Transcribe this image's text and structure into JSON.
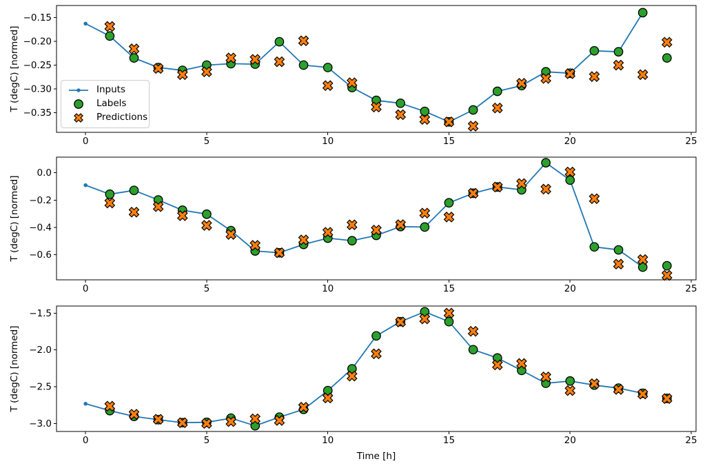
{
  "figure": {
    "background": "#ffffff",
    "xlabel": "Time [h]",
    "legend": {
      "items": [
        {
          "label": "Inputs",
          "marker": "line-dot",
          "color": "#1f77b4"
        },
        {
          "label": "Labels",
          "marker": "circle",
          "color": "#2ca02c"
        },
        {
          "label": "Predictions",
          "marker": "X",
          "color": "#ff7f0e"
        }
      ]
    },
    "colors": {
      "inputs_line": "#1f77b4",
      "labels_fill": "#2ca02c",
      "predictions_fill": "#ff7f0e",
      "marker_edge": "#000000",
      "axis": "#000000",
      "legend_border": "#cccccc"
    }
  },
  "chart_data": [
    {
      "id": "subplot-1",
      "type": "line+scatter",
      "ylabel": "T (degC) [normed]",
      "xlim": [
        -1.2,
        25.2
      ],
      "ylim": [
        -0.391,
        -0.125
      ],
      "xtick_values": [
        0,
        5,
        10,
        15,
        20,
        25
      ],
      "xtick_labels": [
        "0",
        "5",
        "10",
        "15",
        "20",
        "25"
      ],
      "ytick_values": [
        -0.15,
        -0.2,
        -0.25,
        -0.3,
        -0.35
      ],
      "ytick_labels": [
        "−0.15",
        "−0.20",
        "−0.25",
        "−0.30",
        "−0.35"
      ],
      "series": [
        {
          "name": "Inputs",
          "kind": "line",
          "marker": "dot",
          "color": "#1f77b4",
          "x": [
            0,
            1,
            2,
            3,
            4,
            5,
            6,
            7,
            8,
            9,
            10,
            11,
            12,
            13,
            14,
            15,
            16,
            17,
            18,
            19,
            20,
            21,
            22,
            23
          ],
          "y": [
            -0.163,
            -0.189,
            -0.235,
            -0.255,
            -0.261,
            -0.25,
            -0.247,
            -0.248,
            -0.201,
            -0.25,
            -0.255,
            -0.297,
            -0.324,
            -0.33,
            -0.347,
            -0.369,
            -0.344,
            -0.305,
            -0.293,
            -0.264,
            -0.267,
            -0.22,
            -0.222,
            -0.14
          ]
        },
        {
          "name": "Labels",
          "kind": "scatter",
          "marker": "circle",
          "color": "#2ca02c",
          "x": [
            1,
            2,
            3,
            4,
            5,
            6,
            7,
            8,
            9,
            10,
            11,
            12,
            13,
            14,
            15,
            16,
            17,
            18,
            19,
            20,
            21,
            22,
            23,
            24
          ],
          "y": [
            -0.189,
            -0.235,
            -0.255,
            -0.261,
            -0.25,
            -0.247,
            -0.248,
            -0.201,
            -0.25,
            -0.255,
            -0.297,
            -0.324,
            -0.33,
            -0.347,
            -0.369,
            -0.344,
            -0.305,
            -0.293,
            -0.264,
            -0.267,
            -0.22,
            -0.222,
            -0.14,
            -0.235
          ]
        },
        {
          "name": "Predictions",
          "kind": "scatter",
          "marker": "X",
          "color": "#ff7f0e",
          "x": [
            1,
            2,
            3,
            4,
            5,
            6,
            7,
            8,
            9,
            10,
            11,
            12,
            13,
            14,
            15,
            16,
            17,
            18,
            19,
            20,
            21,
            22,
            23,
            24
          ],
          "y": [
            -0.169,
            -0.216,
            -0.257,
            -0.27,
            -0.264,
            -0.235,
            -0.238,
            -0.243,
            -0.199,
            -0.293,
            -0.287,
            -0.338,
            -0.354,
            -0.364,
            -0.369,
            -0.378,
            -0.34,
            -0.288,
            -0.278,
            -0.268,
            -0.274,
            -0.25,
            -0.27,
            -0.202
          ]
        }
      ]
    },
    {
      "id": "subplot-2",
      "type": "line+scatter",
      "ylabel": "T (degC) [normed]",
      "xlim": [
        -1.2,
        25.2
      ],
      "ylim": [
        -0.783,
        0.114
      ],
      "xtick_values": [
        0,
        5,
        10,
        15,
        20,
        25
      ],
      "xtick_labels": [
        "0",
        "5",
        "10",
        "15",
        "20",
        "25"
      ],
      "ytick_values": [
        0.0,
        -0.2,
        -0.4,
        -0.6
      ],
      "ytick_labels": [
        "0.0",
        "−0.2",
        "−0.4",
        "−0.6"
      ],
      "series": [
        {
          "name": "Inputs",
          "kind": "line",
          "marker": "dot",
          "color": "#1f77b4",
          "x": [
            0,
            1,
            2,
            3,
            4,
            5,
            6,
            7,
            8,
            9,
            10,
            11,
            12,
            13,
            14,
            15,
            16,
            17,
            18,
            19,
            20,
            21,
            22,
            23
          ],
          "y": [
            -0.091,
            -0.157,
            -0.129,
            -0.199,
            -0.274,
            -0.303,
            -0.423,
            -0.572,
            -0.585,
            -0.524,
            -0.478,
            -0.497,
            -0.458,
            -0.394,
            -0.397,
            -0.22,
            -0.15,
            -0.104,
            -0.125,
            0.073,
            -0.054,
            -0.542,
            -0.564,
            -0.69
          ]
        },
        {
          "name": "Labels",
          "kind": "scatter",
          "marker": "circle",
          "color": "#2ca02c",
          "x": [
            1,
            2,
            3,
            4,
            5,
            6,
            7,
            8,
            9,
            10,
            11,
            12,
            13,
            14,
            15,
            16,
            17,
            18,
            19,
            20,
            21,
            22,
            23,
            24
          ],
          "y": [
            -0.157,
            -0.129,
            -0.199,
            -0.274,
            -0.303,
            -0.423,
            -0.572,
            -0.585,
            -0.524,
            -0.478,
            -0.497,
            -0.458,
            -0.394,
            -0.397,
            -0.22,
            -0.15,
            -0.104,
            -0.125,
            0.073,
            -0.054,
            -0.542,
            -0.564,
            -0.69,
            -0.68
          ]
        },
        {
          "name": "Predictions",
          "kind": "scatter",
          "marker": "X",
          "color": "#ff7f0e",
          "x": [
            1,
            2,
            3,
            4,
            5,
            6,
            7,
            8,
            9,
            10,
            11,
            12,
            13,
            14,
            15,
            16,
            17,
            18,
            19,
            20,
            21,
            22,
            23,
            24
          ],
          "y": [
            -0.221,
            -0.288,
            -0.248,
            -0.314,
            -0.385,
            -0.451,
            -0.531,
            -0.585,
            -0.491,
            -0.436,
            -0.381,
            -0.419,
            -0.38,
            -0.295,
            -0.324,
            -0.15,
            -0.104,
            -0.079,
            -0.12,
            0.005,
            -0.19,
            -0.668,
            -0.635,
            -0.75
          ]
        }
      ]
    },
    {
      "id": "subplot-3",
      "type": "line+scatter",
      "ylabel": "T (degC) [normed]",
      "xlim": [
        -1.2,
        25.2
      ],
      "ylim": [
        -3.11,
        -1.403
      ],
      "xtick_values": [
        0,
        5,
        10,
        15,
        20,
        25
      ],
      "xtick_labels": [
        "0",
        "5",
        "10",
        "15",
        "20",
        "25"
      ],
      "ytick_values": [
        -1.5,
        -2.0,
        -2.5,
        -3.0
      ],
      "ytick_labels": [
        "−1.5",
        "−2.0",
        "−2.5",
        "−3.0"
      ],
      "series": [
        {
          "name": "Inputs",
          "kind": "line",
          "marker": "dot",
          "color": "#1f77b4",
          "x": [
            0,
            1,
            2,
            3,
            4,
            5,
            6,
            7,
            8,
            9,
            10,
            11,
            12,
            13,
            14,
            15,
            16,
            17,
            18,
            19,
            20,
            21,
            22,
            23
          ],
          "y": [
            -2.733,
            -2.826,
            -2.905,
            -2.95,
            -2.99,
            -2.985,
            -2.929,
            -3.032,
            -2.915,
            -2.81,
            -2.554,
            -2.257,
            -1.809,
            -1.616,
            -1.481,
            -1.616,
            -1.997,
            -2.11,
            -2.279,
            -2.454,
            -2.423,
            -2.48,
            -2.52,
            -2.59
          ]
        },
        {
          "name": "Labels",
          "kind": "scatter",
          "marker": "circle",
          "color": "#2ca02c",
          "x": [
            1,
            2,
            3,
            4,
            5,
            6,
            7,
            8,
            9,
            10,
            11,
            12,
            13,
            14,
            15,
            16,
            17,
            18,
            19,
            20,
            21,
            22,
            23,
            24
          ],
          "y": [
            -2.826,
            -2.905,
            -2.95,
            -2.99,
            -2.985,
            -2.929,
            -3.032,
            -2.915,
            -2.81,
            -2.554,
            -2.257,
            -1.809,
            -1.616,
            -1.481,
            -1.616,
            -1.997,
            -2.11,
            -2.279,
            -2.454,
            -2.423,
            -2.48,
            -2.52,
            -2.59,
            -2.66
          ]
        },
        {
          "name": "Predictions",
          "kind": "scatter",
          "marker": "X",
          "color": "#ff7f0e",
          "x": [
            1,
            2,
            3,
            4,
            5,
            6,
            7,
            8,
            9,
            10,
            11,
            12,
            13,
            14,
            15,
            16,
            17,
            18,
            19,
            20,
            21,
            22,
            23,
            24
          ],
          "y": [
            -2.766,
            -2.876,
            -2.944,
            -2.991,
            -3.0,
            -2.976,
            -2.938,
            -2.96,
            -2.78,
            -2.654,
            -2.357,
            -2.053,
            -1.62,
            -1.578,
            -1.5,
            -1.747,
            -2.204,
            -2.185,
            -2.367,
            -2.554,
            -2.46,
            -2.538,
            -2.601,
            -2.663
          ]
        }
      ]
    }
  ]
}
